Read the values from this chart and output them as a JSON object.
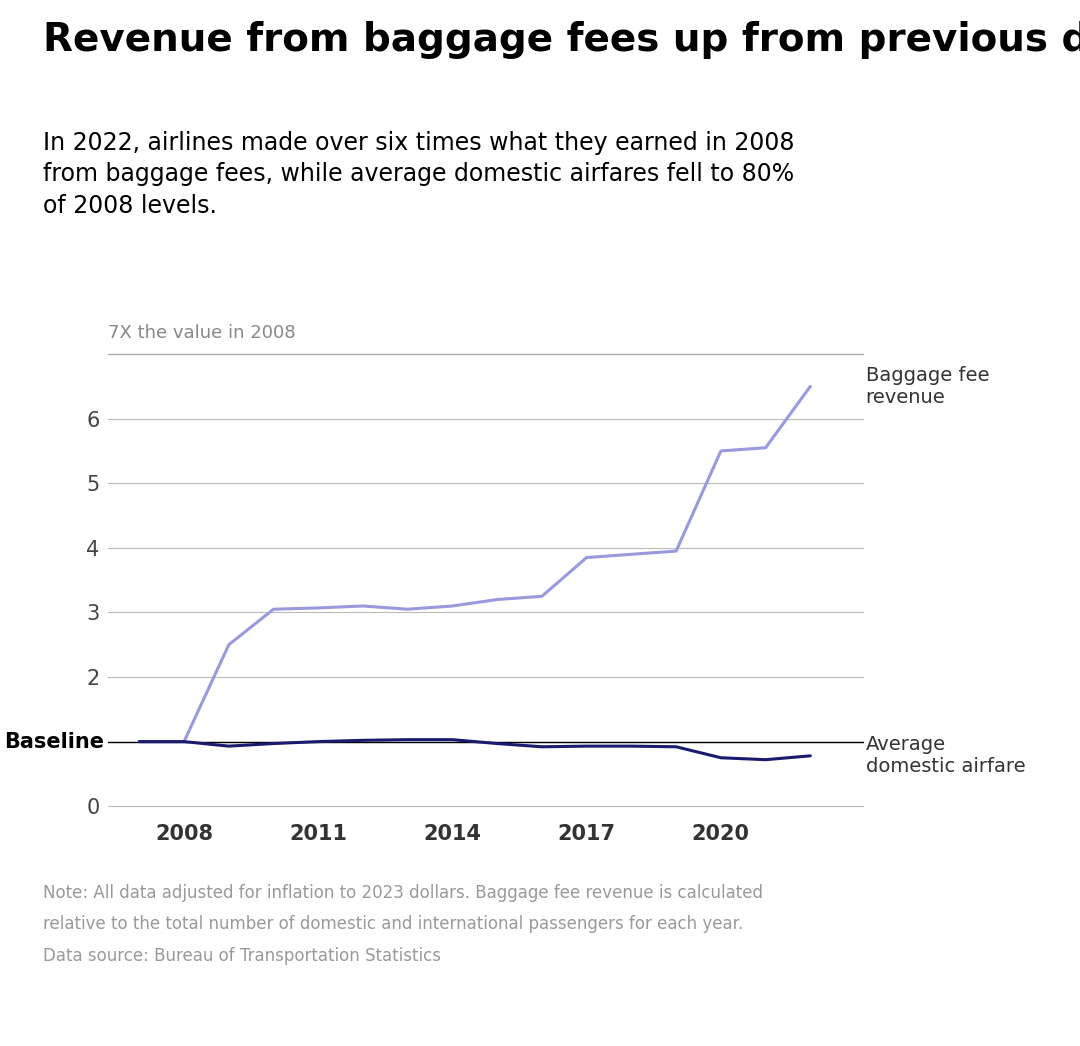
{
  "title": "Revenue from baggage fees up from previous decade",
  "subtitle": "In 2022, airlines made over six times what they earned in 2008\nfrom baggage fees, while average domestic airfares fell to 80%\nof 2008 levels.",
  "title_fontsize": 28,
  "subtitle_fontsize": 17,
  "baggage_years": [
    2007,
    2008,
    2009,
    2010,
    2011,
    2012,
    2013,
    2014,
    2015,
    2016,
    2017,
    2018,
    2019,
    2020,
    2021,
    2022
  ],
  "baggage_values": [
    1.0,
    1.0,
    2.5,
    3.05,
    3.07,
    3.1,
    3.05,
    3.1,
    3.2,
    3.25,
    3.85,
    3.9,
    3.95,
    5.5,
    5.55,
    6.5
  ],
  "airfare_years": [
    2007,
    2008,
    2009,
    2010,
    2011,
    2012,
    2013,
    2014,
    2015,
    2016,
    2017,
    2018,
    2019,
    2020,
    2021,
    2022
  ],
  "airfare_values": [
    1.0,
    1.0,
    0.93,
    0.97,
    1.0,
    1.02,
    1.03,
    1.03,
    0.97,
    0.92,
    0.93,
    0.93,
    0.92,
    0.75,
    0.72,
    0.78
  ],
  "baggage_color": "#9999dd",
  "airfare_color": "#1a1a6e",
  "baseline_color": "#000000",
  "grid_color": "#bbbbbb",
  "ref_line_color": "#aaaaaa",
  "ref_line_value": 7.0,
  "ref_line_label": "7X the value in 2008",
  "yticks": [
    0,
    1,
    2,
    3,
    4,
    5,
    6
  ],
  "ytick_labels": [
    "0",
    "",
    "2",
    "3",
    "4",
    "5",
    "6"
  ],
  "baseline_label": "Baseline",
  "xticks": [
    2008,
    2011,
    2014,
    2017,
    2020
  ],
  "xlim": [
    2006.3,
    2023.2
  ],
  "ylim": [
    -0.15,
    7.3
  ],
  "baggage_label": "Baggage fee\nrevenue",
  "airfare_label": "Average\ndomestic airfare",
  "note_line1": "Note: All data adjusted for inflation to 2023 dollars. Baggage fee revenue is calculated",
  "note_line2": "relative to the total number of domestic and international passengers for each year.",
  "note_line3": "Data source: Bureau of Transportation Statistics",
  "background_color": "#ffffff"
}
